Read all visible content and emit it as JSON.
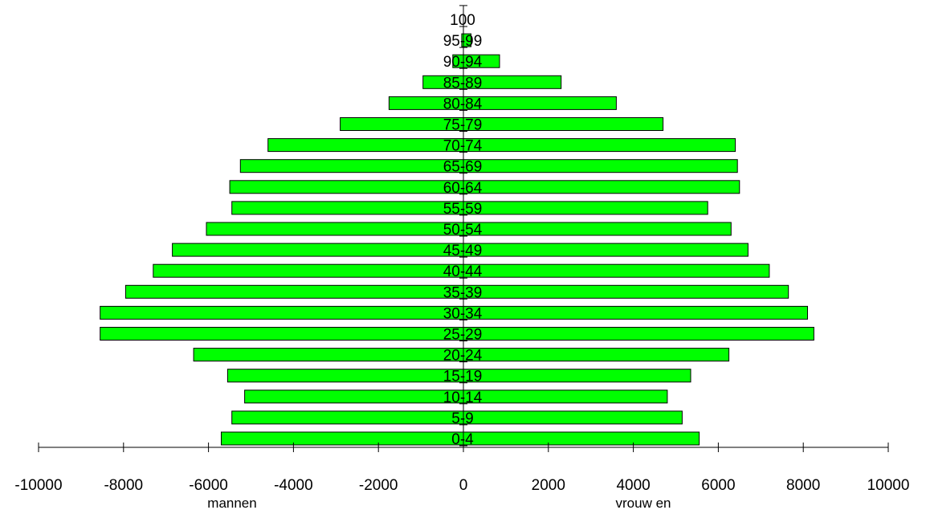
{
  "chart_data": {
    "type": "bar",
    "orientation": "horizontal",
    "title": "",
    "categories": [
      "0-4",
      "5-9",
      "10-14",
      "15-19",
      "20-24",
      "25-29",
      "30-34",
      "35-39",
      "40-44",
      "45-49",
      "50-54",
      "55-59",
      "60-64",
      "65-69",
      "70-74",
      "75-79",
      "80-84",
      "85-89",
      "90-94",
      "95-99",
      "100"
    ],
    "series": [
      {
        "name": "mannen",
        "values": [
          -5700,
          -5450,
          -5150,
          -5550,
          -6350,
          -8550,
          -8550,
          -7950,
          -7300,
          -6850,
          -6050,
          -5450,
          -5500,
          -5250,
          -4600,
          -2900,
          -1750,
          -950,
          -250,
          -40,
          0
        ]
      },
      {
        "name": "vrouwen",
        "values": [
          5550,
          5150,
          4800,
          5350,
          6250,
          8250,
          8100,
          7650,
          7200,
          6700,
          6300,
          5750,
          6500,
          6450,
          6400,
          4700,
          3600,
          2300,
          850,
          180,
          0
        ]
      }
    ],
    "xlim": [
      -10000,
      10000
    ],
    "xticks": [
      -10000,
      -8000,
      -6000,
      -4000,
      -2000,
      0,
      2000,
      4000,
      6000,
      8000,
      10000
    ],
    "xlabel_left": "mannen",
    "xlabel_right": "vrouw en",
    "grid": false,
    "legend": "none",
    "bar_color": "#00ff00",
    "bar_edge_color": "#000000"
  }
}
